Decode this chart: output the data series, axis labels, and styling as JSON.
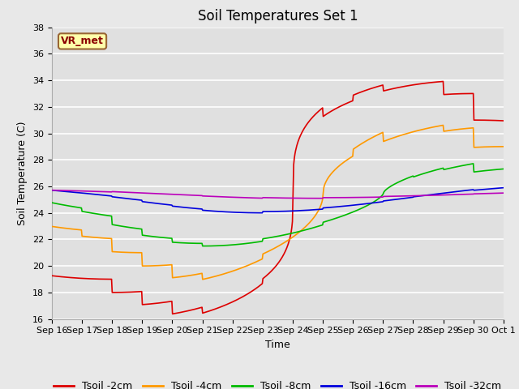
{
  "title": "Soil Temperatures Set 1",
  "xlabel": "Time",
  "ylabel": "Soil Temperature (C)",
  "ylim": [
    16,
    38
  ],
  "yticks": [
    16,
    18,
    20,
    22,
    24,
    26,
    28,
    30,
    32,
    34,
    36,
    38
  ],
  "annotation": "VR_met",
  "series": [
    {
      "label": "Tsoil -2cm",
      "color": "#dd0000",
      "lw": 1.2
    },
    {
      "label": "Tsoil -4cm",
      "color": "#ff9900",
      "lw": 1.2
    },
    {
      "label": "Tsoil -8cm",
      "color": "#00bb00",
      "lw": 1.2
    },
    {
      "label": "Tsoil -16cm",
      "color": "#0000dd",
      "lw": 1.2
    },
    {
      "label": "Tsoil -32cm",
      "color": "#bb00bb",
      "lw": 1.2
    }
  ],
  "background_color": "#e8e8e8",
  "plot_bg_color": "#e0e0e0",
  "grid_color": "#ffffff",
  "title_fontsize": 12,
  "axis_label_fontsize": 9,
  "tick_fontsize": 8,
  "legend_fontsize": 9,
  "n_days": 15,
  "xtick_labels": [
    "Sep 16",
    "Sep 17",
    "Sep 18",
    "Sep 19",
    "Sep 20",
    "Sep 21",
    "Sep 22",
    "Sep 23",
    "Sep 24",
    "Sep 25",
    "Sep 26",
    "Sep 27",
    "Sep 28",
    "Sep 29",
    "Sep 30",
    "Oct 1"
  ],
  "mean_all": 25.5,
  "amplitudes_2cm": [
    6.5,
    6.5,
    7.5,
    8.5,
    9.5,
    10.0,
    10.0,
    9.5,
    9.5,
    8.5,
    9.0,
    8.5,
    8.5,
    7.5,
    5.5
  ],
  "amplitudes_4cm": [
    3.0,
    3.5,
    4.5,
    5.5,
    6.5,
    7.0,
    7.0,
    6.5,
    6.5,
    5.5,
    6.5,
    5.5,
    5.5,
    5.0,
    3.5
  ],
  "amplitudes_8cm": [
    1.8,
    2.2,
    3.0,
    3.5,
    3.8,
    4.0,
    4.0,
    3.8,
    3.8,
    3.5,
    3.5,
    3.2,
    3.0,
    2.8,
    2.0
  ],
  "amplitudes_16cm": [
    0.8,
    0.9,
    1.1,
    1.3,
    1.4,
    1.5,
    1.5,
    1.4,
    1.4,
    1.3,
    1.3,
    1.2,
    1.1,
    1.0,
    0.8
  ],
  "amplitudes_32cm": [
    0.3,
    0.3,
    0.4,
    0.4,
    0.4,
    0.45,
    0.45,
    0.4,
    0.4,
    0.35,
    0.35,
    0.3,
    0.3,
    0.3,
    0.25
  ],
  "phase_peak_2cm": 14,
  "phase_peak_4cm": 15,
  "phase_peak_8cm": 17,
  "phase_peak_16cm": 19,
  "phase_peak_32cm": 21,
  "sharpness_2cm": 3.5,
  "sharpness_4cm": 2.0,
  "sharpness_8cm": 1.5,
  "sharpness_16cm": 1.0,
  "sharpness_32cm": 1.0
}
